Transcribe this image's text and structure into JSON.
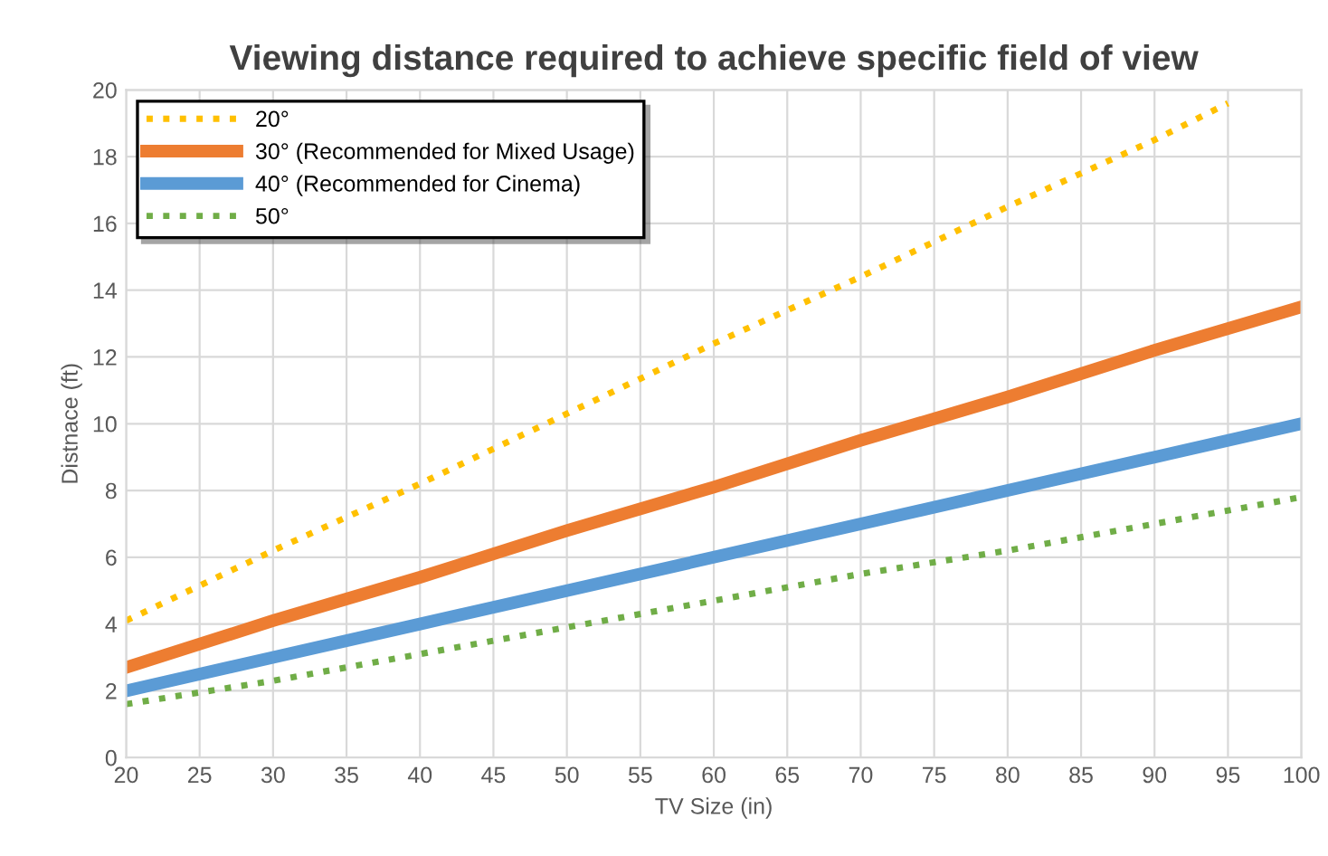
{
  "chart_data": {
    "type": "line",
    "title": "Viewing distance required to achieve specific field of view",
    "xlabel": "TV Size (in)",
    "ylabel": "Distnace (ft)",
    "xlim": [
      20,
      100
    ],
    "xticks": [
      20,
      25,
      30,
      35,
      40,
      45,
      50,
      55,
      60,
      65,
      70,
      75,
      80,
      85,
      90,
      95,
      100
    ],
    "ylim": [
      0,
      20
    ],
    "yticks": [
      0,
      2,
      4,
      6,
      8,
      10,
      12,
      14,
      16,
      18,
      20
    ],
    "grid": true,
    "legend": "top left",
    "series": [
      {
        "name": "20°",
        "color": "#ffc000",
        "line_style": "dotted",
        "x": [
          20,
          30,
          40,
          50,
          60,
          70,
          80,
          90,
          95
        ],
        "values": [
          4.1,
          6.2,
          8.2,
          10.3,
          12.4,
          14.4,
          16.5,
          18.5,
          19.6
        ]
      },
      {
        "name": "30° (Recommended for Mixed Usage)",
        "color": "#ed7d31",
        "line_style": "solid",
        "x": [
          20,
          30,
          40,
          50,
          60,
          70,
          80,
          90,
          100
        ],
        "values": [
          2.7,
          4.1,
          5.4,
          6.8,
          8.1,
          9.5,
          10.8,
          12.2,
          13.5
        ]
      },
      {
        "name": "40° (Recommended for Cinema)",
        "color": "#5b9bd5",
        "line_style": "solid",
        "x": [
          20,
          30,
          40,
          50,
          60,
          70,
          80,
          90,
          100
        ],
        "values": [
          2.0,
          3.0,
          4.0,
          5.0,
          6.0,
          7.0,
          8.0,
          9.0,
          10.0
        ]
      },
      {
        "name": "50°",
        "color": "#70ad47",
        "line_style": "dotted",
        "x": [
          20,
          30,
          40,
          50,
          60,
          70,
          80,
          90,
          100
        ],
        "values": [
          1.6,
          2.3,
          3.1,
          3.9,
          4.7,
          5.5,
          6.2,
          7.0,
          7.8
        ]
      }
    ]
  }
}
